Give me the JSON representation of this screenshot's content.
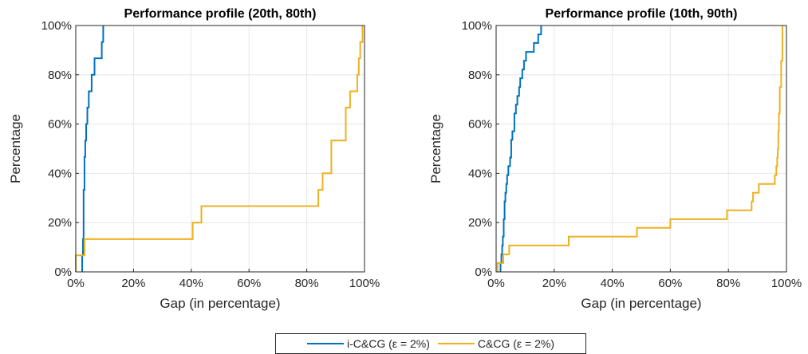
{
  "chart_data": [
    {
      "type": "line",
      "title": "Performance profile (20th, 80th)",
      "xlabel": "Gap (in percentage)",
      "ylabel": "Percentage",
      "xlim": [
        0,
        100
      ],
      "ylim": [
        0,
        100
      ],
      "xticks": [
        "0%",
        "20%",
        "40%",
        "60%",
        "80%",
        "100%"
      ],
      "yticks": [
        "0%",
        "20%",
        "40%",
        "60%",
        "80%",
        "100%"
      ],
      "grid": true,
      "series": [
        {
          "name": "i-C&CG (ε = 2%)",
          "color": "#0072BD",
          "points": [
            [
              2.2,
              0
            ],
            [
              2.2,
              6.7
            ],
            [
              2.5,
              6.7
            ],
            [
              2.5,
              13.3
            ],
            [
              2.7,
              13.3
            ],
            [
              2.7,
              33.3
            ],
            [
              3.0,
              33.3
            ],
            [
              3.0,
              46.7
            ],
            [
              3.3,
              46.7
            ],
            [
              3.3,
              53.3
            ],
            [
              3.6,
              53.3
            ],
            [
              3.6,
              60
            ],
            [
              4.0,
              60
            ],
            [
              4.0,
              66.7
            ],
            [
              4.5,
              66.7
            ],
            [
              4.5,
              73.3
            ],
            [
              5.5,
              73.3
            ],
            [
              5.5,
              80
            ],
            [
              6.5,
              80
            ],
            [
              6.5,
              86.7
            ],
            [
              9.0,
              86.7
            ],
            [
              9.0,
              93.3
            ],
            [
              9.5,
              93.3
            ],
            [
              9.5,
              100
            ]
          ]
        },
        {
          "name": "C&CG (ε = 2%)",
          "color": "#EDB120",
          "points": [
            [
              0,
              0
            ],
            [
              0,
              6.7
            ],
            [
              3.0,
              6.7
            ],
            [
              3.0,
              13.3
            ],
            [
              40.5,
              13.3
            ],
            [
              40.5,
              20
            ],
            [
              43.5,
              20
            ],
            [
              43.5,
              26.7
            ],
            [
              84.0,
              26.7
            ],
            [
              84.0,
              33.3
            ],
            [
              85.5,
              33.3
            ],
            [
              85.5,
              40
            ],
            [
              88.5,
              40
            ],
            [
              88.5,
              53.3
            ],
            [
              93.5,
              53.3
            ],
            [
              93.5,
              66.7
            ],
            [
              95.0,
              66.7
            ],
            [
              95.0,
              73.3
            ],
            [
              97.5,
              73.3
            ],
            [
              97.5,
              80
            ],
            [
              98.0,
              80
            ],
            [
              98.0,
              86.7
            ],
            [
              98.5,
              86.7
            ],
            [
              98.5,
              93.3
            ],
            [
              99.3,
              93.3
            ],
            [
              99.3,
              100
            ]
          ]
        }
      ]
    },
    {
      "type": "line",
      "title": "Performance profile (10th, 90th)",
      "xlabel": "Gap (in percentage)",
      "ylabel": "Percentage",
      "xlim": [
        0,
        100
      ],
      "ylim": [
        0,
        100
      ],
      "xticks": [
        "0%",
        "20%",
        "40%",
        "60%",
        "80%",
        "100%"
      ],
      "yticks": [
        "0%",
        "20%",
        "40%",
        "60%",
        "80%",
        "100%"
      ],
      "grid": true,
      "series": [
        {
          "name": "i-C&CG (ε = 2%)",
          "color": "#0072BD",
          "points": [
            [
              1.5,
              0
            ],
            [
              1.5,
              3.6
            ],
            [
              1.8,
              3.6
            ],
            [
              1.8,
              7.1
            ],
            [
              2.1,
              7.1
            ],
            [
              2.1,
              10.7
            ],
            [
              2.3,
              10.7
            ],
            [
              2.3,
              14.3
            ],
            [
              2.6,
              14.3
            ],
            [
              2.6,
              21.4
            ],
            [
              2.9,
              21.4
            ],
            [
              2.9,
              28.6
            ],
            [
              3.2,
              28.6
            ],
            [
              3.2,
              32.1
            ],
            [
              3.5,
              32.1
            ],
            [
              3.5,
              35.7
            ],
            [
              3.8,
              35.7
            ],
            [
              3.8,
              39.3
            ],
            [
              4.2,
              39.3
            ],
            [
              4.2,
              42.9
            ],
            [
              4.8,
              42.9
            ],
            [
              4.8,
              46.4
            ],
            [
              5.2,
              46.4
            ],
            [
              5.2,
              53.6
            ],
            [
              5.6,
              53.6
            ],
            [
              5.6,
              57.1
            ],
            [
              6.3,
              57.1
            ],
            [
              6.3,
              64.3
            ],
            [
              6.8,
              64.3
            ],
            [
              6.8,
              67.9
            ],
            [
              7.3,
              67.9
            ],
            [
              7.3,
              71.4
            ],
            [
              7.9,
              71.4
            ],
            [
              7.9,
              75
            ],
            [
              8.3,
              75
            ],
            [
              8.3,
              78.6
            ],
            [
              9.0,
              78.6
            ],
            [
              9.0,
              82.1
            ],
            [
              9.6,
              82.1
            ],
            [
              9.6,
              85.7
            ],
            [
              10.3,
              85.7
            ],
            [
              10.3,
              89.3
            ],
            [
              13.0,
              89.3
            ],
            [
              13.0,
              92.9
            ],
            [
              14.5,
              92.9
            ],
            [
              14.5,
              96.4
            ],
            [
              15.5,
              96.4
            ],
            [
              15.5,
              100
            ]
          ]
        },
        {
          "name": "C&CG (ε = 2%)",
          "color": "#EDB120",
          "points": [
            [
              0.5,
              0
            ],
            [
              0.5,
              3.6
            ],
            [
              2.5,
              3.6
            ],
            [
              2.5,
              7.1
            ],
            [
              4.5,
              7.1
            ],
            [
              4.5,
              10.7
            ],
            [
              25.0,
              10.7
            ],
            [
              25.0,
              14.3
            ],
            [
              48.5,
              14.3
            ],
            [
              48.5,
              17.9
            ],
            [
              60.0,
              17.9
            ],
            [
              60.0,
              21.4
            ],
            [
              79.5,
              21.4
            ],
            [
              79.5,
              25
            ],
            [
              88.0,
              25
            ],
            [
              88.0,
              28.6
            ],
            [
              88.5,
              28.6
            ],
            [
              88.5,
              32.1
            ],
            [
              90.5,
              32.1
            ],
            [
              90.5,
              35.7
            ],
            [
              96.0,
              35.7
            ],
            [
              96.0,
              39.3
            ],
            [
              96.5,
              39.3
            ],
            [
              96.5,
              42.9
            ],
            [
              96.8,
              42.9
            ],
            [
              96.8,
              46.4
            ],
            [
              97.0,
              46.4
            ],
            [
              97.0,
              50
            ],
            [
              97.2,
              50
            ],
            [
              97.2,
              57.1
            ],
            [
              97.4,
              57.1
            ],
            [
              97.4,
              64.3
            ],
            [
              97.7,
              64.3
            ],
            [
              97.7,
              75
            ],
            [
              98.2,
              75
            ],
            [
              98.2,
              85.7
            ],
            [
              98.6,
              85.7
            ],
            [
              98.6,
              100
            ]
          ]
        }
      ]
    }
  ],
  "legend": {
    "items": [
      {
        "label": "i-C&CG (ε = 2%)",
        "color": "#0072BD"
      },
      {
        "label": "C&CG (ε = 2%)",
        "color": "#EDB120"
      }
    ]
  }
}
